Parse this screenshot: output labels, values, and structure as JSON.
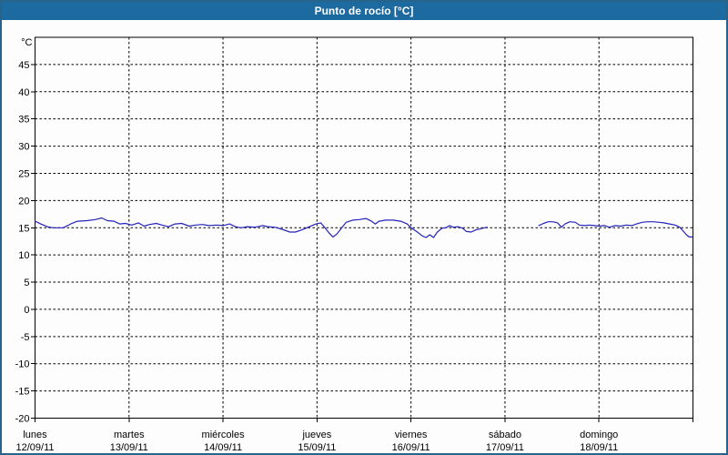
{
  "header": {
    "title": "Punto de rocío [°C]"
  },
  "colors": {
    "header_bg": "#1d6aa1",
    "header_text": "#ffffff",
    "window_border": "#26648b",
    "background": "#fdfdfd",
    "axis": "#000000",
    "grid": "#000000",
    "line": "#2424b8",
    "label_text": "#000000"
  },
  "y_axis": {
    "unit": "°C",
    "ticks": [
      45,
      40,
      35,
      30,
      25,
      20,
      15,
      10,
      5,
      0,
      -5,
      -10,
      -15,
      -20
    ]
  },
  "x_axis": {
    "days": [
      {
        "name": "lunes",
        "date": "12/09/11"
      },
      {
        "name": "martes",
        "date": "13/09/11"
      },
      {
        "name": "miércoles",
        "date": "14/09/11"
      },
      {
        "name": "jueves",
        "date": "15/09/11"
      },
      {
        "name": "viernes",
        "date": "16/09/11"
      },
      {
        "name": "sábado",
        "date": "17/09/11"
      },
      {
        "name": "domingo",
        "date": "18/09/11"
      }
    ]
  },
  "chart_data": {
    "type": "line",
    "title": "Punto de rocío [°C]",
    "ylabel": "°C",
    "ylim": [
      -20,
      50
    ],
    "y_tick_step": 5,
    "xlim_days": [
      0,
      7
    ],
    "grid": "dashed",
    "legend": "none",
    "note": "x is in days from lunes 12/09/11 00:00; gap in data between day 4.81 and 5.36 (late viernes to sábado midday)",
    "series": [
      {
        "name": "Punto de rocío",
        "color": "#2424b8",
        "segments": [
          [
            [
              0.0,
              16.2
            ],
            [
              0.06,
              15.7
            ],
            [
              0.13,
              15.2
            ],
            [
              0.19,
              15.0
            ],
            [
              0.3,
              15.0
            ],
            [
              0.38,
              15.7
            ],
            [
              0.45,
              16.2
            ],
            [
              0.55,
              16.3
            ],
            [
              0.64,
              16.5
            ],
            [
              0.71,
              16.8
            ],
            [
              0.77,
              16.3
            ],
            [
              0.84,
              16.2
            ],
            [
              0.9,
              15.7
            ],
            [
              0.96,
              15.8
            ],
            [
              1.03,
              15.5
            ],
            [
              1.1,
              15.9
            ],
            [
              1.16,
              15.3
            ],
            [
              1.22,
              15.6
            ],
            [
              1.29,
              15.8
            ],
            [
              1.35,
              15.5
            ],
            [
              1.42,
              15.2
            ],
            [
              1.49,
              15.7
            ],
            [
              1.56,
              15.8
            ],
            [
              1.64,
              15.3
            ],
            [
              1.71,
              15.5
            ],
            [
              1.78,
              15.6
            ],
            [
              1.85,
              15.4
            ],
            [
              1.93,
              15.5
            ],
            [
              2.0,
              15.4
            ],
            [
              2.07,
              15.7
            ],
            [
              2.13,
              15.2
            ],
            [
              2.19,
              15.0
            ],
            [
              2.26,
              15.2
            ],
            [
              2.34,
              15.1
            ],
            [
              2.42,
              15.4
            ],
            [
              2.48,
              15.2
            ],
            [
              2.55,
              15.1
            ],
            [
              2.63,
              14.7
            ],
            [
              2.71,
              14.2
            ],
            [
              2.77,
              14.2
            ],
            [
              2.84,
              14.6
            ],
            [
              2.92,
              15.2
            ],
            [
              2.99,
              15.7
            ],
            [
              3.04,
              15.9
            ],
            [
              3.08,
              15.1
            ],
            [
              3.13,
              14.0
            ],
            [
              3.17,
              13.3
            ],
            [
              3.21,
              13.8
            ],
            [
              3.26,
              14.9
            ],
            [
              3.31,
              16.0
            ],
            [
              3.38,
              16.4
            ],
            [
              3.45,
              16.5
            ],
            [
              3.52,
              16.7
            ],
            [
              3.58,
              16.2
            ],
            [
              3.62,
              15.7
            ],
            [
              3.66,
              16.2
            ],
            [
              3.73,
              16.4
            ],
            [
              3.81,
              16.4
            ],
            [
              3.89,
              16.2
            ],
            [
              3.96,
              15.7
            ],
            [
              4.0,
              15.0
            ],
            [
              4.06,
              14.3
            ],
            [
              4.12,
              13.5
            ],
            [
              4.16,
              13.2
            ],
            [
              4.2,
              13.7
            ],
            [
              4.24,
              13.2
            ],
            [
              4.28,
              14.2
            ],
            [
              4.33,
              14.9
            ],
            [
              4.37,
              15.0
            ],
            [
              4.41,
              15.4
            ],
            [
              4.45,
              15.1
            ],
            [
              4.5,
              15.2
            ],
            [
              4.55,
              14.9
            ],
            [
              4.59,
              14.3
            ],
            [
              4.64,
              14.2
            ],
            [
              4.69,
              14.6
            ],
            [
              4.74,
              14.8
            ],
            [
              4.78,
              15.0
            ],
            [
              4.81,
              15.1
            ]
          ],
          [
            [
              5.36,
              15.4
            ],
            [
              5.41,
              15.8
            ],
            [
              5.46,
              16.1
            ],
            [
              5.51,
              16.1
            ],
            [
              5.56,
              15.9
            ],
            [
              5.6,
              15.1
            ],
            [
              5.64,
              15.7
            ],
            [
              5.69,
              16.1
            ],
            [
              5.75,
              16.0
            ],
            [
              5.79,
              15.5
            ],
            [
              5.85,
              15.4
            ],
            [
              5.9,
              15.5
            ],
            [
              5.95,
              15.4
            ],
            [
              6.0,
              15.3
            ],
            [
              6.06,
              15.4
            ],
            [
              6.11,
              15.1
            ],
            [
              6.17,
              15.4
            ],
            [
              6.23,
              15.3
            ],
            [
              6.29,
              15.5
            ],
            [
              6.35,
              15.4
            ],
            [
              6.4,
              15.7
            ],
            [
              6.46,
              16.0
            ],
            [
              6.52,
              16.1
            ],
            [
              6.58,
              16.1
            ],
            [
              6.64,
              16.0
            ],
            [
              6.69,
              15.9
            ],
            [
              6.75,
              15.7
            ],
            [
              6.81,
              15.5
            ],
            [
              6.86,
              15.1
            ],
            [
              6.9,
              14.3
            ],
            [
              6.93,
              13.7
            ],
            [
              6.96,
              13.3
            ],
            [
              6.99,
              13.3
            ]
          ]
        ]
      }
    ]
  }
}
